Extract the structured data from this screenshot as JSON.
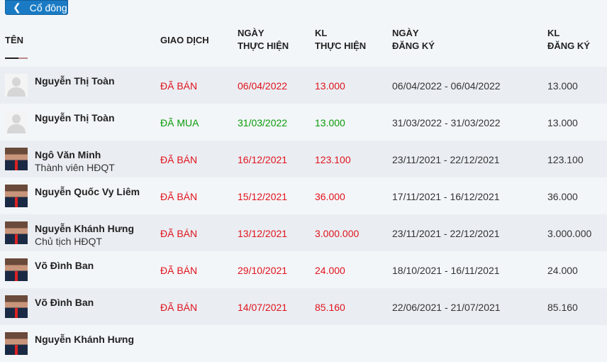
{
  "back_button": {
    "label": "Cổ đông",
    "icon": "chevron-left-icon"
  },
  "columns": [
    "TÊN",
    "GIAO DỊCH",
    "NGÀY\nTHỰC HIỆN",
    "KL\nTHỰC HIỆN",
    "NGÀY\nĐĂNG KÝ",
    "KL\nĐĂNG KÝ"
  ],
  "colors": {
    "sell": "#e0131b",
    "buy": "#0a9a0a",
    "button": "#1a7bc4"
  },
  "rows": [
    {
      "name": "Nguyễn Thị Toàn",
      "role": "",
      "avatar": "placeholder",
      "type": "ĐÃ BÁN",
      "date": "06/04/2022",
      "volume": "13.000",
      "reg_period": "06/04/2022 - 06/04/2022",
      "reg_volume": "13.000",
      "color": "red"
    },
    {
      "name": "Nguyễn Thị Toàn",
      "role": "",
      "avatar": "placeholder",
      "type": "ĐÃ MUA",
      "date": "31/03/2022",
      "volume": "13.000",
      "reg_period": "31/03/2022 - 31/03/2022",
      "reg_volume": "13.000",
      "color": "green"
    },
    {
      "name": "Ngô Văn Minh",
      "role": "Thành viên HĐQT",
      "avatar": "photo",
      "type": "ĐÃ BÁN",
      "date": "16/12/2021",
      "volume": "123.100",
      "reg_period": "23/11/2021 - 22/12/2021",
      "reg_volume": "123.100",
      "color": "red"
    },
    {
      "name": "Nguyễn Quốc Vy Liêm",
      "role": "",
      "avatar": "photo",
      "type": "ĐÃ BÁN",
      "date": "15/12/2021",
      "volume": "36.000",
      "reg_period": "17/11/2021 - 16/12/2021",
      "reg_volume": "36.000",
      "color": "red"
    },
    {
      "name": "Nguyễn Khánh Hưng",
      "role": "Chủ tịch HĐQT",
      "avatar": "photo",
      "type": "ĐÃ BÁN",
      "date": "13/12/2021",
      "volume": "3.000.000",
      "reg_period": "23/11/2021 - 22/12/2021",
      "reg_volume": "3.000.000",
      "color": "red"
    },
    {
      "name": "Võ Đình Ban",
      "role": "",
      "avatar": "photo",
      "type": "ĐÃ BÁN",
      "date": "29/10/2021",
      "volume": "24.000",
      "reg_period": "18/10/2021 - 16/11/2021",
      "reg_volume": "24.000",
      "color": "red"
    },
    {
      "name": "Võ Đình Ban",
      "role": "",
      "avatar": "photo",
      "type": "ĐÃ BÁN",
      "date": "14/07/2021",
      "volume": "85.160",
      "reg_period": "22/06/2021 - 21/07/2021",
      "reg_volume": "85.160",
      "color": "red"
    },
    {
      "name": "Nguyễn Khánh Hưng",
      "role": "",
      "avatar": "photo",
      "type": "",
      "date": "",
      "volume": "",
      "reg_period": "",
      "reg_volume": "",
      "color": "red"
    }
  ]
}
